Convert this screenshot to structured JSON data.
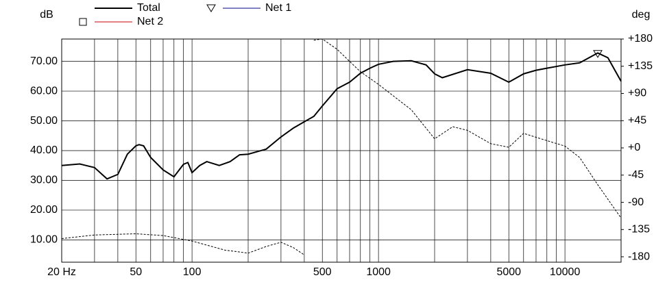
{
  "chart_data": {
    "type": "line",
    "ylabel": "dB",
    "y2label": "deg",
    "xscale": "log",
    "xlim": [
      20,
      20000
    ],
    "ylim": [
      2.5,
      77.5
    ],
    "y2lim": [
      -189,
      180
    ],
    "xticks": [
      {
        "value": 20,
        "label": "20 Hz"
      },
      50,
      100,
      500,
      1000,
      5000,
      10000
    ],
    "xgrid": [
      20,
      30,
      40,
      50,
      60,
      70,
      80,
      90,
      100,
      200,
      300,
      400,
      500,
      600,
      700,
      800,
      900,
      1000,
      2000,
      3000,
      4000,
      5000,
      6000,
      7000,
      8000,
      9000,
      10000,
      20000
    ],
    "yticks": [
      {
        "value": 10,
        "label": "10.00"
      },
      {
        "value": 20,
        "label": "20.00"
      },
      {
        "value": 30,
        "label": "30.00"
      },
      {
        "value": 40,
        "label": "40.00"
      },
      {
        "value": 50,
        "label": "50.00"
      },
      {
        "value": 60,
        "label": "60.00"
      },
      {
        "value": 70,
        "label": "70.00"
      }
    ],
    "y2ticks": [
      {
        "value": 180,
        "label": "+180"
      },
      {
        "value": 135,
        "label": "+135"
      },
      {
        "value": 90,
        "label": "+90"
      },
      {
        "value": 45,
        "label": "+45"
      },
      {
        "value": 0,
        "label": "+0"
      },
      -45,
      -90,
      -135,
      -180
    ],
    "grid": true,
    "series": [
      {
        "name": "Total",
        "color": "#000000",
        "x": [
          20,
          25,
          30,
          35,
          40,
          45,
          50,
          52,
          55,
          60,
          70,
          80,
          90,
          95,
          100,
          110,
          120,
          140,
          160,
          180,
          200,
          250,
          300,
          350,
          400,
          450,
          500,
          600,
          700,
          800,
          900,
          1000,
          1200,
          1500,
          1800,
          2000,
          2200,
          3000,
          4000,
          5000,
          6000,
          7000,
          8000,
          10000,
          12000,
          15000,
          17000,
          20000
        ],
        "values": [
          35,
          35.5,
          34.3,
          30.5,
          32,
          38.8,
          41.6,
          42,
          41.6,
          37.7,
          33.5,
          31.2,
          35.4,
          36,
          32.6,
          35,
          36.3,
          35,
          36.3,
          38.6,
          38.8,
          40.5,
          44.6,
          47.6,
          49.7,
          51.5,
          55,
          60.8,
          63,
          66,
          67.7,
          69,
          70,
          70.2,
          68.8,
          65.8,
          64.5,
          67.2,
          66,
          63,
          65.8,
          67,
          67.7,
          68.8,
          69.5,
          72.8,
          71.2,
          63.3
        ]
      },
      {
        "name": "Net 1",
        "color": "#00008b",
        "marker": "triangle",
        "x": [
          15000
        ],
        "values": [
          72.5
        ]
      },
      {
        "name": "Net 2",
        "color": "#cc0000",
        "marker": "square",
        "x": [],
        "values": []
      },
      {
        "color": "#000000",
        "dashed": true,
        "axis": "y2",
        "x": [
          20,
          30,
          50,
          70,
          100,
          150,
          200,
          250,
          300,
          350,
          400,
          420,
          450,
          500,
          600,
          700,
          800,
          1000,
          1500,
          2000,
          2500,
          3000,
          4000,
          5000,
          6000,
          8000,
          10000,
          12000,
          15000,
          20000
        ],
        "values": [
          -150,
          -144,
          -142,
          -145,
          -154,
          -169,
          -174,
          -163,
          -156,
          -165,
          -177,
          null,
          178,
          180,
          163,
          143,
          126,
          105,
          63,
          15,
          35,
          29,
          7,
          1,
          24,
          12,
          3,
          -16,
          -61,
          -116
        ]
      }
    ]
  }
}
